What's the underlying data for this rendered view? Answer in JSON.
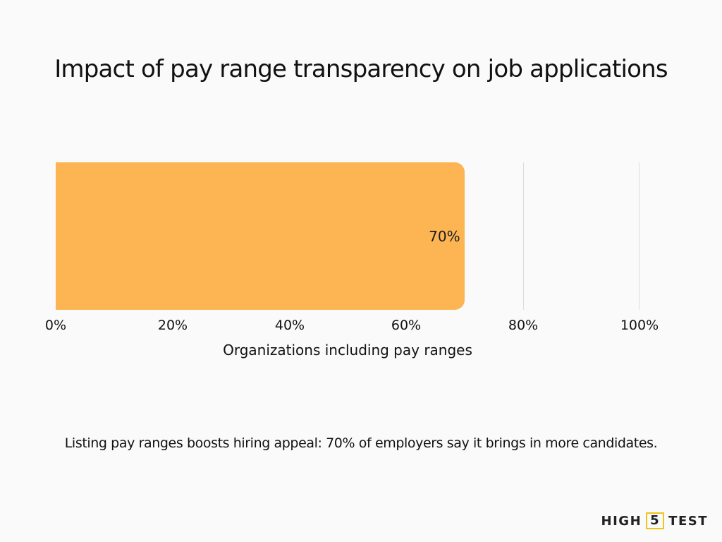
{
  "chart_data": {
    "type": "bar",
    "orientation": "horizontal",
    "title": "Impact of pay range transparency on job applications",
    "categories": [
      ""
    ],
    "values": [
      70
    ],
    "data_labels": [
      "70%"
    ],
    "xlabel": "Organizations including pay ranges",
    "ylabel": "",
    "xlim": [
      0,
      100
    ],
    "x_ticks": [
      "0%",
      "20%",
      "40%",
      "60%",
      "80%",
      "100%"
    ],
    "grid": "vertical",
    "legend": "none",
    "bar_color": "#FDB554",
    "caption": "Listing pay ranges boosts hiring appeal: 70% of employers say it brings in more candidates."
  },
  "brand": {
    "left": "HIGH",
    "badge": "5",
    "right": "TEST",
    "accent": "#F0C419"
  }
}
